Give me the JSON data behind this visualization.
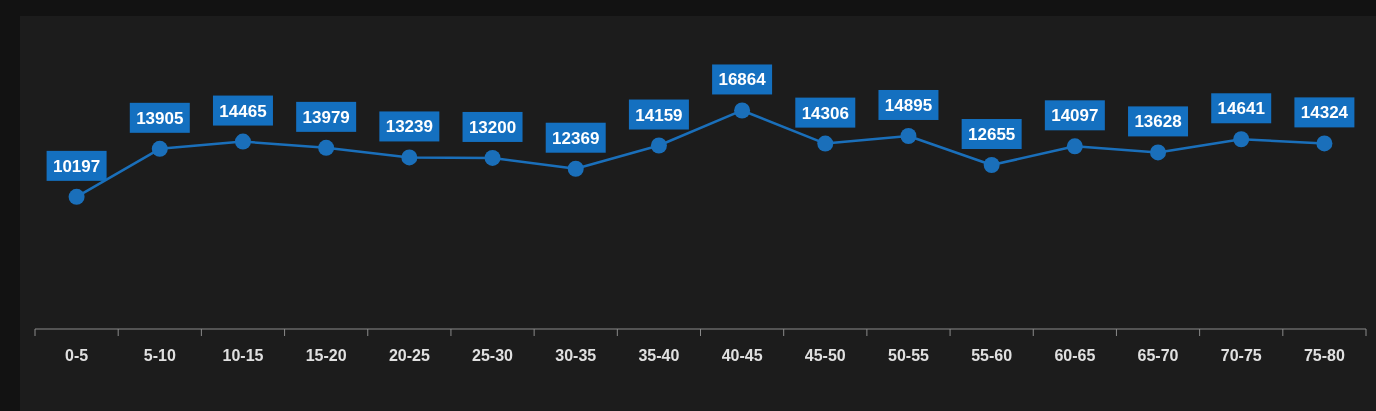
{
  "chart_data": {
    "type": "line",
    "categories": [
      "0-5",
      "5-10",
      "10-15",
      "15-20",
      "20-25",
      "25-30",
      "30-35",
      "35-40",
      "40-45",
      "45-50",
      "50-55",
      "55-60",
      "60-65",
      "65-70",
      "70-75",
      "75-80"
    ],
    "series": [
      {
        "color": "#1a6fba",
        "values": [
          10197,
          13905,
          14465,
          13979,
          13239,
          13200,
          12369,
          14159,
          16864,
          14306,
          14895,
          12655,
          14097,
          13628,
          14641,
          14324
        ]
      }
    ],
    "ylim": [
      0,
      24000
    ],
    "tick_labels": "x",
    "data_labels": true,
    "marker": "circle",
    "line_style": "solid"
  }
}
